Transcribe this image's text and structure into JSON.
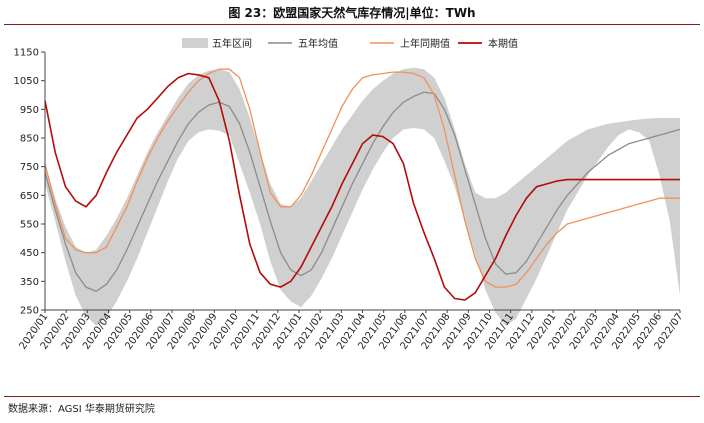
{
  "figure": {
    "title": "图 23：欧盟国家天然气库存情况|单位：TWh",
    "source": "数据来源：AGSI 华泰期货研究院"
  },
  "colors": {
    "band": "#d0d0d0",
    "avg": "#8c8c8c",
    "prev": "#f0915a",
    "curr": "#b40a0a",
    "axis": "#444444",
    "title_rule": "#8a1a1a"
  },
  "chart_data": {
    "type": "line",
    "title": "",
    "xlabel": "",
    "ylabel": "",
    "ylim": [
      250,
      1150
    ],
    "yticks": [
      250,
      350,
      450,
      550,
      650,
      750,
      850,
      950,
      1050,
      1150
    ],
    "x_tick_labels": [
      "2020/01",
      "2020/02",
      "2020/03",
      "2020/04",
      "2020/05",
      "2020/06",
      "2020/07",
      "2020/08",
      "2020/09",
      "2020/10",
      "2020/11",
      "2020/12",
      "2021/01",
      "2021/02",
      "2021/03",
      "2021/04",
      "2021/05",
      "2021/06",
      "2021/07",
      "2021/08",
      "2021/09",
      "2021/10",
      "2021/11",
      "2021/12",
      "2022/01",
      "2022/02",
      "2022/03",
      "2022/04",
      "2022/05",
      "2022/06",
      "2022/07"
    ],
    "legend": {
      "position": "top",
      "entries": [
        "五年区间",
        "五年均值",
        "上年同期值",
        "本期值"
      ]
    },
    "x": [
      0,
      1,
      2,
      3,
      4,
      5,
      6,
      7,
      8,
      9,
      10,
      11,
      12,
      13,
      14,
      15,
      16,
      17,
      18,
      19,
      20,
      21,
      22,
      23,
      24,
      25,
      26,
      27,
      28,
      29,
      30,
      31,
      32,
      33,
      34,
      35,
      36,
      37,
      38,
      39,
      40,
      41,
      42,
      43,
      44,
      45,
      46,
      47,
      48,
      49,
      50,
      51,
      52,
      53,
      54,
      55,
      56,
      57,
      58,
      59,
      60,
      61,
      62
    ],
    "x_unit": "half-month index from 2020/01 (2 points per month)",
    "series": [
      {
        "name": "五年区间",
        "kind": "band",
        "low": [
          690,
          560,
          420,
          300,
          230,
          195,
          225,
          280,
          350,
          430,
          520,
          610,
          700,
          780,
          840,
          870,
          880,
          875,
          860,
          760,
          660,
          550,
          420,
          320,
          280,
          260,
          300,
          360,
          430,
          510,
          590,
          670,
          740,
          800,
          850,
          880,
          885,
          880,
          850,
          770,
          680,
          560,
          440,
          320,
          240,
          195,
          220,
          290,
          360,
          440,
          520,
          600,
          660,
          720,
          770,
          820,
          860,
          880,
          870,
          840,
          720,
          560,
          300
        ],
        "high": [
          760,
          640,
          540,
          470,
          450,
          460,
          510,
          570,
          640,
          720,
          800,
          870,
          930,
          990,
          1040,
          1070,
          1085,
          1090,
          1080,
          1020,
          920,
          800,
          690,
          620,
          610,
          640,
          700,
          760,
          820,
          880,
          930,
          980,
          1020,
          1050,
          1075,
          1090,
          1095,
          1090,
          1060,
          990,
          880,
          760,
          660,
          640,
          640,
          660,
          690,
          720,
          750,
          780,
          810,
          840,
          860,
          880,
          890,
          900,
          905,
          910,
          915,
          918,
          920,
          920,
          920
        ]
      },
      {
        "name": "五年均值",
        "kind": "line",
        "values": [
          730,
          600,
          480,
          380,
          330,
          315,
          340,
          390,
          460,
          540,
          620,
          700,
          770,
          840,
          900,
          940,
          965,
          975,
          960,
          900,
          800,
          680,
          560,
          450,
          390,
          370,
          390,
          450,
          530,
          610,
          690,
          760,
          830,
          890,
          940,
          975,
          995,
          1010,
          1005,
          950,
          860,
          740,
          620,
          500,
          410,
          375,
          380,
          420,
          480,
          540,
          600,
          650,
          690,
          730,
          760,
          790,
          810,
          830,
          840,
          850,
          860,
          870,
          880
        ]
      },
      {
        "name": "上年同期值",
        "kind": "line",
        "values": [
          760,
          620,
          500,
          460,
          450,
          450,
          470,
          540,
          610,
          700,
          780,
          850,
          910,
          960,
          1010,
          1050,
          1075,
          1090,
          1090,
          1060,
          950,
          800,
          660,
          610,
          610,
          650,
          720,
          800,
          880,
          960,
          1020,
          1060,
          1070,
          1075,
          1080,
          1080,
          1075,
          1060,
          1000,
          880,
          720,
          560,
          430,
          350,
          330,
          330,
          340,
          380,
          430,
          480,
          520,
          550,
          560,
          570,
          580,
          590,
          600,
          610,
          620,
          630,
          640,
          640,
          640
        ]
      },
      {
        "name": "本期值",
        "kind": "line",
        "values": [
          980,
          800,
          680,
          630,
          610,
          650,
          730,
          800,
          860,
          920,
          950,
          990,
          1030,
          1060,
          1075,
          1070,
          1060,
          980,
          840,
          650,
          480,
          380,
          340,
          330,
          350,
          400,
          470,
          540,
          610,
          690,
          760,
          830,
          860,
          855,
          830,
          760,
          620,
          520,
          430,
          330,
          290,
          285,
          310,
          370,
          430,
          510,
          580,
          640,
          680,
          690,
          700,
          705,
          705,
          705,
          705,
          705,
          705,
          705,
          705,
          705,
          705,
          705,
          705
        ]
      }
    ]
  }
}
